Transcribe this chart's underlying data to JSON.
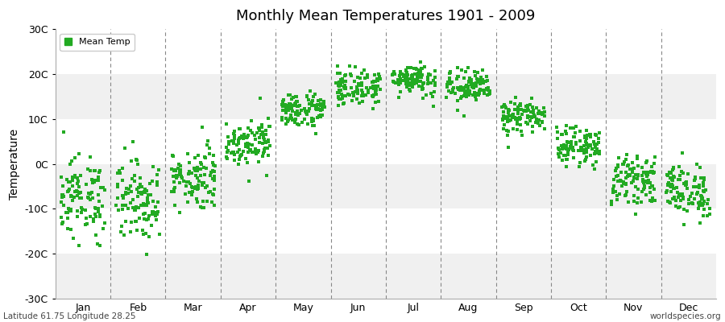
{
  "title": "Monthly Mean Temperatures 1901 - 2009",
  "ylabel": "Temperature",
  "ylim": [
    -30,
    30
  ],
  "yticks": [
    -30,
    -20,
    -10,
    0,
    10,
    20,
    30
  ],
  "ytick_labels": [
    "-30C",
    "-20C",
    "-10C",
    "0C",
    "10C",
    "20C",
    "30C"
  ],
  "months": [
    "Jan",
    "Feb",
    "Mar",
    "Apr",
    "May",
    "Jun",
    "Jul",
    "Aug",
    "Sep",
    "Oct",
    "Nov",
    "Dec"
  ],
  "dot_color": "#22AA22",
  "bg_color": "#ffffff",
  "band_colors": [
    "#f0f0f0",
    "#ffffff"
  ],
  "grid_color": "#888888",
  "legend_label": "Mean Temp",
  "footer_left": "Latitude 61.75 Longitude 28.25",
  "footer_right": "worldspecies.org",
  "month_means": [
    -7.5,
    -8.0,
    -3.0,
    5.0,
    12.0,
    17.0,
    19.0,
    17.0,
    10.5,
    4.0,
    -3.5,
    -6.0
  ],
  "month_stds": [
    4.5,
    4.5,
    3.5,
    2.5,
    2.0,
    2.0,
    1.8,
    2.0,
    1.8,
    2.0,
    2.5,
    3.0
  ],
  "n_years": 109,
  "dot_size": 7,
  "marker": "s"
}
